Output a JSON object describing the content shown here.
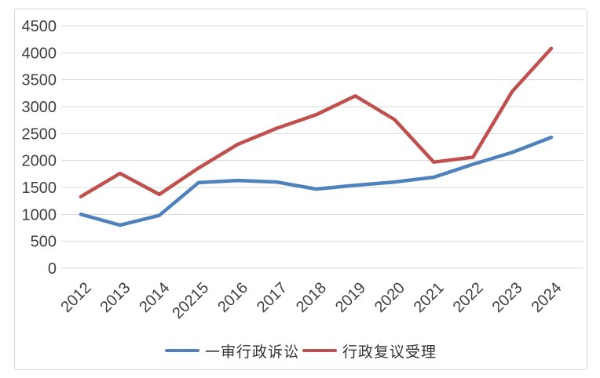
{
  "chart_data": {
    "type": "line",
    "title": "",
    "xlabel": "",
    "ylabel": "",
    "categories": [
      "2012",
      "2013",
      "2014",
      "20215",
      "2016",
      "2017",
      "2018",
      "2019",
      "2020",
      "2021",
      "2022",
      "2023",
      "2024"
    ],
    "series": [
      {
        "name": "一审行政诉讼",
        "color": "#4F81BD",
        "values": [
          1000,
          800,
          980,
          1590,
          1630,
          1600,
          1470,
          1540,
          1600,
          1690,
          1930,
          2150,
          2430
        ]
      },
      {
        "name": "行政复议受理",
        "color": "#C0504D",
        "values": [
          1330,
          1760,
          1370,
          1860,
          2300,
          2600,
          2850,
          3200,
          2760,
          1970,
          2060,
          3280,
          4080
        ]
      }
    ],
    "ylim": [
      0,
      4500
    ],
    "y_tick_step": 500,
    "y_tick_labels": [
      "0",
      "500",
      "1000",
      "1500",
      "2000",
      "2500",
      "3000",
      "3500",
      "4000",
      "4500"
    ],
    "grid": true,
    "legend_position": "bottom"
  },
  "styles": {
    "grid_color": "#d9d9d9",
    "tick_label_color": "#3f3f3f",
    "frame_border_color": "#d8d8d8",
    "background_color": "#ffffff"
  }
}
